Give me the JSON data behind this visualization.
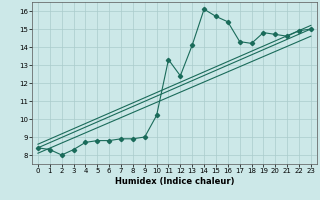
{
  "xlabel": "Humidex (Indice chaleur)",
  "x_ticks": [
    0,
    1,
    2,
    3,
    4,
    5,
    6,
    7,
    8,
    9,
    10,
    11,
    12,
    13,
    14,
    15,
    16,
    17,
    18,
    19,
    20,
    21,
    22,
    23
  ],
  "ylim": [
    7.5,
    16.5
  ],
  "xlim": [
    -0.5,
    23.5
  ],
  "bg_color": "#cce8e8",
  "grid_color": "#aacccc",
  "line_color": "#1a6b5a",
  "line1_y": [
    8.4,
    8.3,
    8.0,
    8.3,
    8.7,
    8.8,
    8.8,
    8.9,
    8.9,
    9.0,
    10.2,
    13.3,
    12.4,
    14.1,
    16.1,
    15.7,
    15.4,
    14.3,
    14.2,
    14.8,
    14.7,
    14.6,
    14.9,
    15.0
  ],
  "yticks": [
    8,
    9,
    10,
    11,
    12,
    13,
    14,
    15,
    16
  ],
  "trend1_x": [
    0,
    23
  ],
  "trend1_y": [
    8.4,
    15.0
  ],
  "trend2_x": [
    0,
    23
  ],
  "trend2_y": [
    8.1,
    14.6
  ],
  "trend3_x": [
    0,
    23
  ],
  "trend3_y": [
    8.6,
    15.2
  ]
}
